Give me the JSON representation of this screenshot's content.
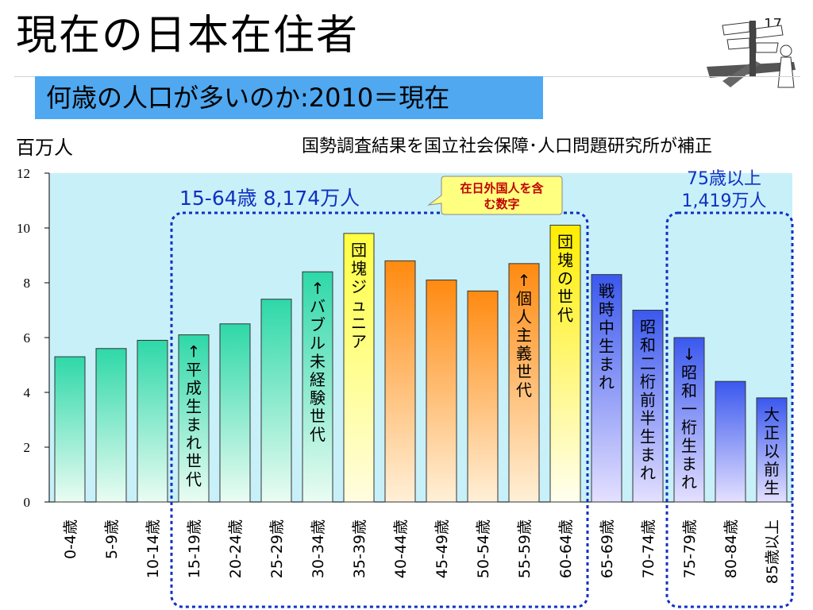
{
  "slide": {
    "title": "現在の日本在住者",
    "page_number": "17",
    "subtitle": "何歳の人口が多いのか:2010＝現在",
    "unit_label": "百万人",
    "source_note": "国勢調査結果を国立社会保障･人口問題研究所が補正",
    "annotation_workingage": "15-64歳 8,174万人",
    "annotation_elderly_line1": "75歳以上",
    "annotation_elderly_line2": "1,419万人",
    "callout_line1": "在日外国人を含",
    "callout_line2": "む数字"
  },
  "chart_data": {
    "type": "bar",
    "ylim": [
      0,
      12
    ],
    "yticks": [
      "0",
      "2",
      "4",
      "6",
      "8",
      "10",
      "12"
    ],
    "categories": [
      "0-4歳",
      "5-9歳",
      "10-14歳",
      "15-19歳",
      "20-24歳",
      "25-29歳",
      "30-34歳",
      "35-39歳",
      "40-44歳",
      "45-49歳",
      "50-54歳",
      "55-59歳",
      "60-64歳",
      "65-69歳",
      "70-74歳",
      "75-79歳",
      "80-84歳",
      "85歳以上"
    ],
    "values": [
      5.3,
      5.6,
      5.9,
      6.1,
      6.5,
      7.4,
      8.4,
      9.8,
      8.8,
      8.1,
      7.7,
      8.7,
      10.1,
      8.3,
      7.0,
      6.0,
      4.4,
      3.8
    ],
    "bar_labels": [
      "",
      "",
      "",
      "↑平成生まれ世代",
      "",
      "",
      "↑バブル未経験世代",
      "団塊ジュニア",
      "",
      "",
      "",
      "↑個人主義世代",
      "団塊の世代",
      "戦時中生まれ",
      "昭和二桁前半生まれ",
      "↓昭和一桁生まれ",
      "",
      "大正以前生"
    ],
    "groups": [
      "youth",
      "youth",
      "youth",
      "youth",
      "youth",
      "youth",
      "youth",
      "jr",
      "mid",
      "mid",
      "mid",
      "mid",
      "dankai",
      "senior",
      "senior",
      "senior",
      "senior",
      "senior"
    ],
    "colors": {
      "plot_background": "#c8f0f8",
      "youth": "#2ed8a8",
      "jr": "#ffff40",
      "mid": "#ff9a20",
      "dankai": "#ffee00",
      "senior": "#4060f0",
      "dotted_border": "#1030c0",
      "annotation_text": "#1030c0",
      "callout_fill": "#ffff80",
      "callout_text": "#c00000"
    },
    "grid": false
  }
}
